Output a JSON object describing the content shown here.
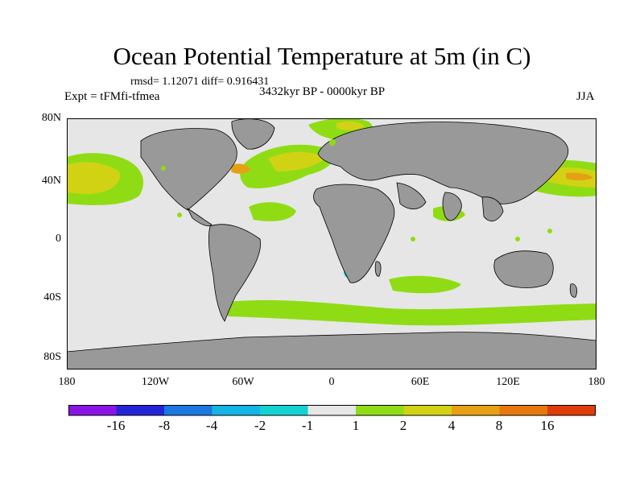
{
  "figure": {
    "title": "Ocean Potential Temperature at 5m (in C)",
    "stats": "rmsd= 1.12071 diff= 0.916431",
    "experiment": "Expt = tFMfi-tfmea",
    "period": "3432kyr BP - 0000kyr BP",
    "season": "JJA"
  },
  "axes": {
    "lat_labels": [
      "80N",
      "40N",
      "0",
      "40S",
      "80S"
    ],
    "lon_labels": [
      "180",
      "120W",
      "60W",
      "0",
      "60E",
      "120E",
      "180"
    ]
  },
  "colorbar": {
    "colors": [
      "#8a14e6",
      "#2424d6",
      "#1a78e0",
      "#14b4e4",
      "#14d2d2",
      "#e6e6e6",
      "#8fdc14",
      "#d2d214",
      "#e6a014",
      "#e6780e",
      "#e03c0a"
    ],
    "labels": [
      "-16",
      "-8",
      "-4",
      "-2",
      "-1",
      "1",
      "2",
      "4",
      "8",
      "16"
    ]
  },
  "map": {
    "land_color": "#999999",
    "ocean_neutral_color": "#e6e6e6",
    "features": [
      "land-north-america",
      "land-greenland",
      "land-south-america",
      "land-africa",
      "land-eurasia",
      "land-australia",
      "land-antarctica",
      "anomaly-north-pacific",
      "anomaly-north-atlantic",
      "anomaly-kuroshio",
      "anomaly-southern-ocean",
      "anomaly-madagascar-negative"
    ]
  }
}
